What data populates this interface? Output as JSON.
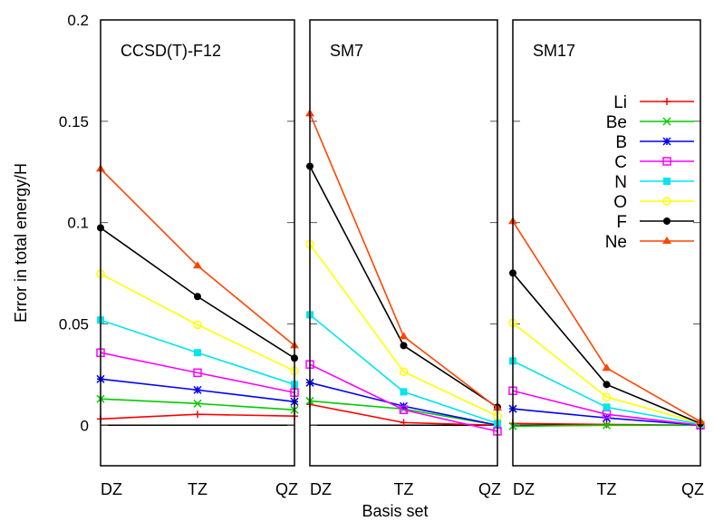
{
  "chart_data": {
    "type": "line",
    "ylabel": "Error in total energy/H",
    "xlabel": "Basis set",
    "ylim": [
      -0.02,
      0.2
    ],
    "yticks": [
      "0",
      "0.05",
      "0.1",
      "0.15",
      "0.2"
    ],
    "yticks_values": [
      0,
      0.05,
      0.1,
      0.15,
      0.2
    ],
    "categories": [
      "DZ",
      "TZ",
      "QZ"
    ],
    "legend_placement": "inside right of third panel",
    "grid": false,
    "zero_line": true,
    "panels": [
      {
        "title": "CCSD(T)-F12",
        "series": [
          {
            "name": "Li",
            "values": [
              0.0031,
              0.0054,
              0.0045
            ]
          },
          {
            "name": "Be",
            "values": [
              0.013,
              0.0107,
              0.0076
            ]
          },
          {
            "name": "B",
            "values": [
              0.0228,
              0.0174,
              0.0116
            ]
          },
          {
            "name": "C",
            "values": [
              0.0358,
              0.0259,
              0.0161
            ]
          },
          {
            "name": "N",
            "values": [
              0.0519,
              0.0358,
              0.0201
            ]
          },
          {
            "name": "O",
            "values": [
              0.0747,
              0.0496,
              0.0268
            ]
          },
          {
            "name": "F",
            "values": [
              0.0974,
              0.0635,
              0.0331
            ]
          },
          {
            "name": "Ne",
            "values": [
              0.1265,
              0.0787,
              0.0393
            ]
          }
        ]
      },
      {
        "title": "SM7",
        "series": [
          {
            "name": "Li",
            "values": [
              0.0103,
              0.0013,
              0.0
            ]
          },
          {
            "name": "Be",
            "values": [
              0.012,
              0.008,
              0.0
            ]
          },
          {
            "name": "B",
            "values": [
              0.021,
              0.0094,
              0.0
            ]
          },
          {
            "name": "C",
            "values": [
              0.03,
              0.0076,
              -0.003
            ]
          },
          {
            "name": "N",
            "values": [
              0.0545,
              0.0165,
              0.0009
            ]
          },
          {
            "name": "O",
            "values": [
              0.0894,
              0.0264,
              0.0045
            ]
          },
          {
            "name": "F",
            "values": [
              0.1278,
              0.0393,
              0.0089
            ]
          },
          {
            "name": "Ne",
            "values": [
              0.1538,
              0.0438,
              0.0085
            ]
          }
        ]
      },
      {
        "title": "SM17",
        "series": [
          {
            "name": "Li",
            "values": [
              0.0009,
              0.0004,
              0.0
            ]
          },
          {
            "name": "Be",
            "values": [
              -0.0005,
              0.0,
              0.0
            ]
          },
          {
            "name": "B",
            "values": [
              0.0081,
              0.0036,
              0.0
            ]
          },
          {
            "name": "C",
            "values": [
              0.017,
              0.0054,
              0.0
            ]
          },
          {
            "name": "N",
            "values": [
              0.0317,
              0.0089,
              0.0005
            ]
          },
          {
            "name": "O",
            "values": [
              0.0505,
              0.0139,
              0.001
            ]
          },
          {
            "name": "F",
            "values": [
              0.0751,
              0.0201,
              0.0009
            ]
          },
          {
            "name": "Ne",
            "values": [
              0.1006,
              0.0282,
              0.0018
            ]
          }
        ]
      }
    ],
    "series_styles": [
      {
        "name": "Li",
        "color": "#ff0000",
        "marker": "plus"
      },
      {
        "name": "Be",
        "color": "#00cc00",
        "marker": "cross"
      },
      {
        "name": "B",
        "color": "#0000ff",
        "marker": "star"
      },
      {
        "name": "C",
        "color": "#ff00ff",
        "marker": "open-square"
      },
      {
        "name": "N",
        "color": "#00e5ee",
        "marker": "filled-square"
      },
      {
        "name": "O",
        "color": "#ffff00",
        "marker": "open-circle"
      },
      {
        "name": "F",
        "color": "#000000",
        "marker": "filled-circle"
      },
      {
        "name": "Ne",
        "color": "#ff4500",
        "marker": "filled-triangle"
      }
    ]
  }
}
